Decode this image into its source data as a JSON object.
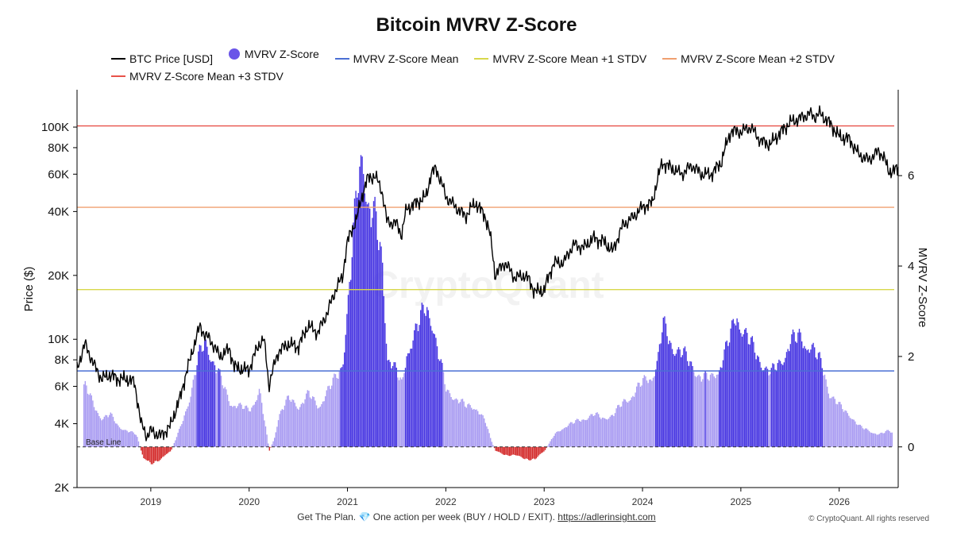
{
  "chart_data": {
    "type": "area",
    "title": "Bitcoin MVRV Z-Score",
    "ylabel_left": "Price ($)",
    "ylabel_right": "MVRV Z-Score",
    "left_axis": {
      "scale": "log",
      "range": [
        2000,
        150000
      ],
      "ticks": [
        {
          "v": 2000,
          "label": "2K"
        },
        {
          "v": 4000,
          "label": "4K"
        },
        {
          "v": 6000,
          "label": "6K"
        },
        {
          "v": 8000,
          "label": "8K"
        },
        {
          "v": 10000,
          "label": "10K"
        },
        {
          "v": 20000,
          "label": "20K"
        },
        {
          "v": 40000,
          "label": "40K"
        },
        {
          "v": 60000,
          "label": "60K"
        },
        {
          "v": 80000,
          "label": "80K"
        },
        {
          "v": 100000,
          "label": "100K"
        }
      ]
    },
    "right_axis": {
      "scale": "linear",
      "range": [
        -0.9,
        7.9
      ],
      "ticks": [
        0,
        2,
        4,
        6
      ]
    },
    "x_axis": {
      "range": [
        2018.25,
        2026.6
      ],
      "ticks": [
        {
          "v": 2019,
          "label": "2019"
        },
        {
          "v": 2020,
          "label": "2020"
        },
        {
          "v": 2021,
          "label": "2021"
        },
        {
          "v": 2022,
          "label": "2022"
        },
        {
          "v": 2023,
          "label": "2023"
        },
        {
          "v": 2024,
          "label": "2024"
        },
        {
          "v": 2025,
          "label": "2025"
        },
        {
          "v": 2026,
          "label": "2026"
        }
      ]
    },
    "legend_placement": "top",
    "grid": false,
    "watermark": "CryptoQuant",
    "baseline_label": "Base Line",
    "reference_lines": [
      {
        "name": "MVRV Z-Score Mean",
        "value": 1.68,
        "color": "#4a6fd4"
      },
      {
        "name": "MVRV Z-Score Mean +1 STDV",
        "value": 3.48,
        "color": "#d8d84a"
      },
      {
        "name": "MVRV Z-Score Mean +2 STDV",
        "value": 5.3,
        "color": "#f0a070"
      },
      {
        "name": "MVRV Z-Score Mean +3 STDV",
        "value": 7.1,
        "color": "#e8524a"
      }
    ],
    "series": [
      {
        "name": "BTC Price [USD]",
        "color": "#000000",
        "x": [
          2018.25,
          2018.33,
          2018.42,
          2018.5,
          2018.58,
          2018.67,
          2018.75,
          2018.83,
          2018.9,
          2018.96,
          2019.0,
          2019.1,
          2019.2,
          2019.3,
          2019.4,
          2019.5,
          2019.55,
          2019.6,
          2019.7,
          2019.8,
          2019.85,
          2019.9,
          2019.95,
          2020.0,
          2020.1,
          2020.15,
          2020.2,
          2020.3,
          2020.4,
          2020.5,
          2020.6,
          2020.7,
          2020.8,
          2020.9,
          2020.95,
          2021.0,
          2021.05,
          2021.1,
          2021.2,
          2021.28,
          2021.35,
          2021.4,
          2021.5,
          2021.55,
          2021.6,
          2021.7,
          2021.8,
          2021.85,
          2021.9,
          2022.0,
          2022.1,
          2022.2,
          2022.3,
          2022.4,
          2022.45,
          2022.5,
          2022.6,
          2022.7,
          2022.8,
          2022.85,
          2022.9,
          2023.0,
          2023.1,
          2023.2,
          2023.3,
          2023.4,
          2023.5,
          2023.6,
          2023.7,
          2023.8,
          2023.9,
          2024.0,
          2024.1,
          2024.2,
          2024.3,
          2024.4,
          2024.5,
          2024.6,
          2024.7,
          2024.8,
          2024.9,
          2025.0,
          2025.1,
          2025.2,
          2025.3,
          2025.4,
          2025.5,
          2025.6,
          2025.7,
          2025.75,
          2025.8,
          2025.9,
          2026.0,
          2026.1,
          2026.2,
          2026.3,
          2026.4,
          2026.45,
          2026.5,
          2026.55,
          2026.6
        ],
        "values": [
          7200,
          9500,
          7600,
          6500,
          6800,
          6500,
          6500,
          6300,
          4000,
          3500,
          3700,
          3500,
          3900,
          5300,
          8000,
          11500,
          10500,
          10000,
          8300,
          9000,
          7400,
          7300,
          7200,
          7200,
          9500,
          10000,
          6000,
          8800,
          9500,
          9200,
          11600,
          10700,
          13500,
          18000,
          19500,
          29000,
          33000,
          38000,
          57000,
          59000,
          50000,
          36000,
          35000,
          31000,
          41000,
          44000,
          47000,
          60000,
          64000,
          47000,
          42000,
          38000,
          44000,
          38000,
          31000,
          20000,
          23000,
          19500,
          20000,
          19000,
          16800,
          17000,
          23000,
          23000,
          28000,
          27000,
          30000,
          29000,
          26000,
          34500,
          37500,
          42000,
          44000,
          68000,
          64000,
          60000,
          66000,
          60000,
          60000,
          68000,
          96000,
          95000,
          100000,
          86000,
          83000,
          94000,
          105000,
          110000,
          116000,
          112000,
          116000,
          105000,
          90000,
          88000,
          74000,
          70000,
          77000,
          73000,
          62000,
          62000,
          64000
        ]
      },
      {
        "name": "MVRV Z-Score",
        "color_low": "#9b8cf0",
        "color_high": "#3f2de0",
        "color_negative": "#d22222",
        "x": [
          2018.25,
          2018.33,
          2018.42,
          2018.5,
          2018.58,
          2018.67,
          2018.75,
          2018.85,
          2018.92,
          2019.0,
          2019.1,
          2019.2,
          2019.3,
          2019.4,
          2019.48,
          2019.55,
          2019.6,
          2019.7,
          2019.8,
          2019.9,
          2020.0,
          2020.1,
          2020.2,
          2020.25,
          2020.3,
          2020.4,
          2020.5,
          2020.6,
          2020.7,
          2020.8,
          2020.9,
          2020.95,
          2021.0,
          2021.05,
          2021.1,
          2021.15,
          2021.2,
          2021.28,
          2021.35,
          2021.4,
          2021.5,
          2021.55,
          2021.6,
          2021.7,
          2021.8,
          2021.85,
          2021.9,
          2022.0,
          2022.1,
          2022.2,
          2022.3,
          2022.4,
          2022.45,
          2022.5,
          2022.6,
          2022.7,
          2022.8,
          2022.9,
          2023.0,
          2023.1,
          2023.2,
          2023.3,
          2023.4,
          2023.5,
          2023.6,
          2023.7,
          2023.8,
          2023.9,
          2024.0,
          2024.1,
          2024.15,
          2024.2,
          2024.3,
          2024.4,
          2024.5,
          2024.6,
          2024.7,
          2024.8,
          2024.9,
          2024.95,
          2025.0,
          2025.1,
          2025.2,
          2025.3,
          2025.4,
          2025.5,
          2025.6,
          2025.7,
          2025.8,
          2025.85,
          2025.9,
          2026.0,
          2026.1,
          2026.2,
          2026.3,
          2026.4,
          2026.5,
          2026.6
        ],
        "values": [
          1.3,
          1.5,
          1.0,
          0.7,
          0.8,
          0.5,
          0.4,
          0.3,
          -0.3,
          -0.4,
          -0.3,
          -0.1,
          0.5,
          1.3,
          2.2,
          2.6,
          2.3,
          1.7,
          1.1,
          1.0,
          0.9,
          1.4,
          -0.1,
          0.2,
          0.8,
          1.2,
          1.0,
          1.3,
          1.0,
          1.4,
          1.8,
          2.2,
          3.5,
          5.0,
          6.5,
          7.4,
          6.0,
          5.5,
          4.5,
          2.3,
          1.8,
          1.5,
          2.4,
          2.9,
          3.5,
          3.2,
          2.5,
          1.4,
          1.2,
          1.0,
          1.0,
          0.6,
          0.2,
          -0.1,
          -0.2,
          -0.2,
          -0.3,
          -0.3,
          -0.1,
          0.3,
          0.5,
          0.6,
          0.7,
          0.8,
          0.7,
          0.8,
          1.1,
          1.3,
          1.6,
          1.8,
          2.1,
          3.0,
          2.5,
          2.3,
          2.0,
          1.7,
          1.7,
          2.1,
          2.8,
          3.3,
          3.0,
          2.5,
          2.1,
          1.8,
          2.1,
          2.6,
          2.7,
          2.5,
          2.1,
          1.8,
          1.3,
          1.0,
          0.8,
          0.5,
          0.4,
          0.3,
          0.4,
          0.3
        ]
      }
    ]
  },
  "footer": {
    "text": "Get The Plan. 💎 One action per week (BUY / HOLD / EXIT).",
    "link": "https://adlerinsight.com",
    "copyright": "© CryptoQuant. All rights reserved"
  }
}
